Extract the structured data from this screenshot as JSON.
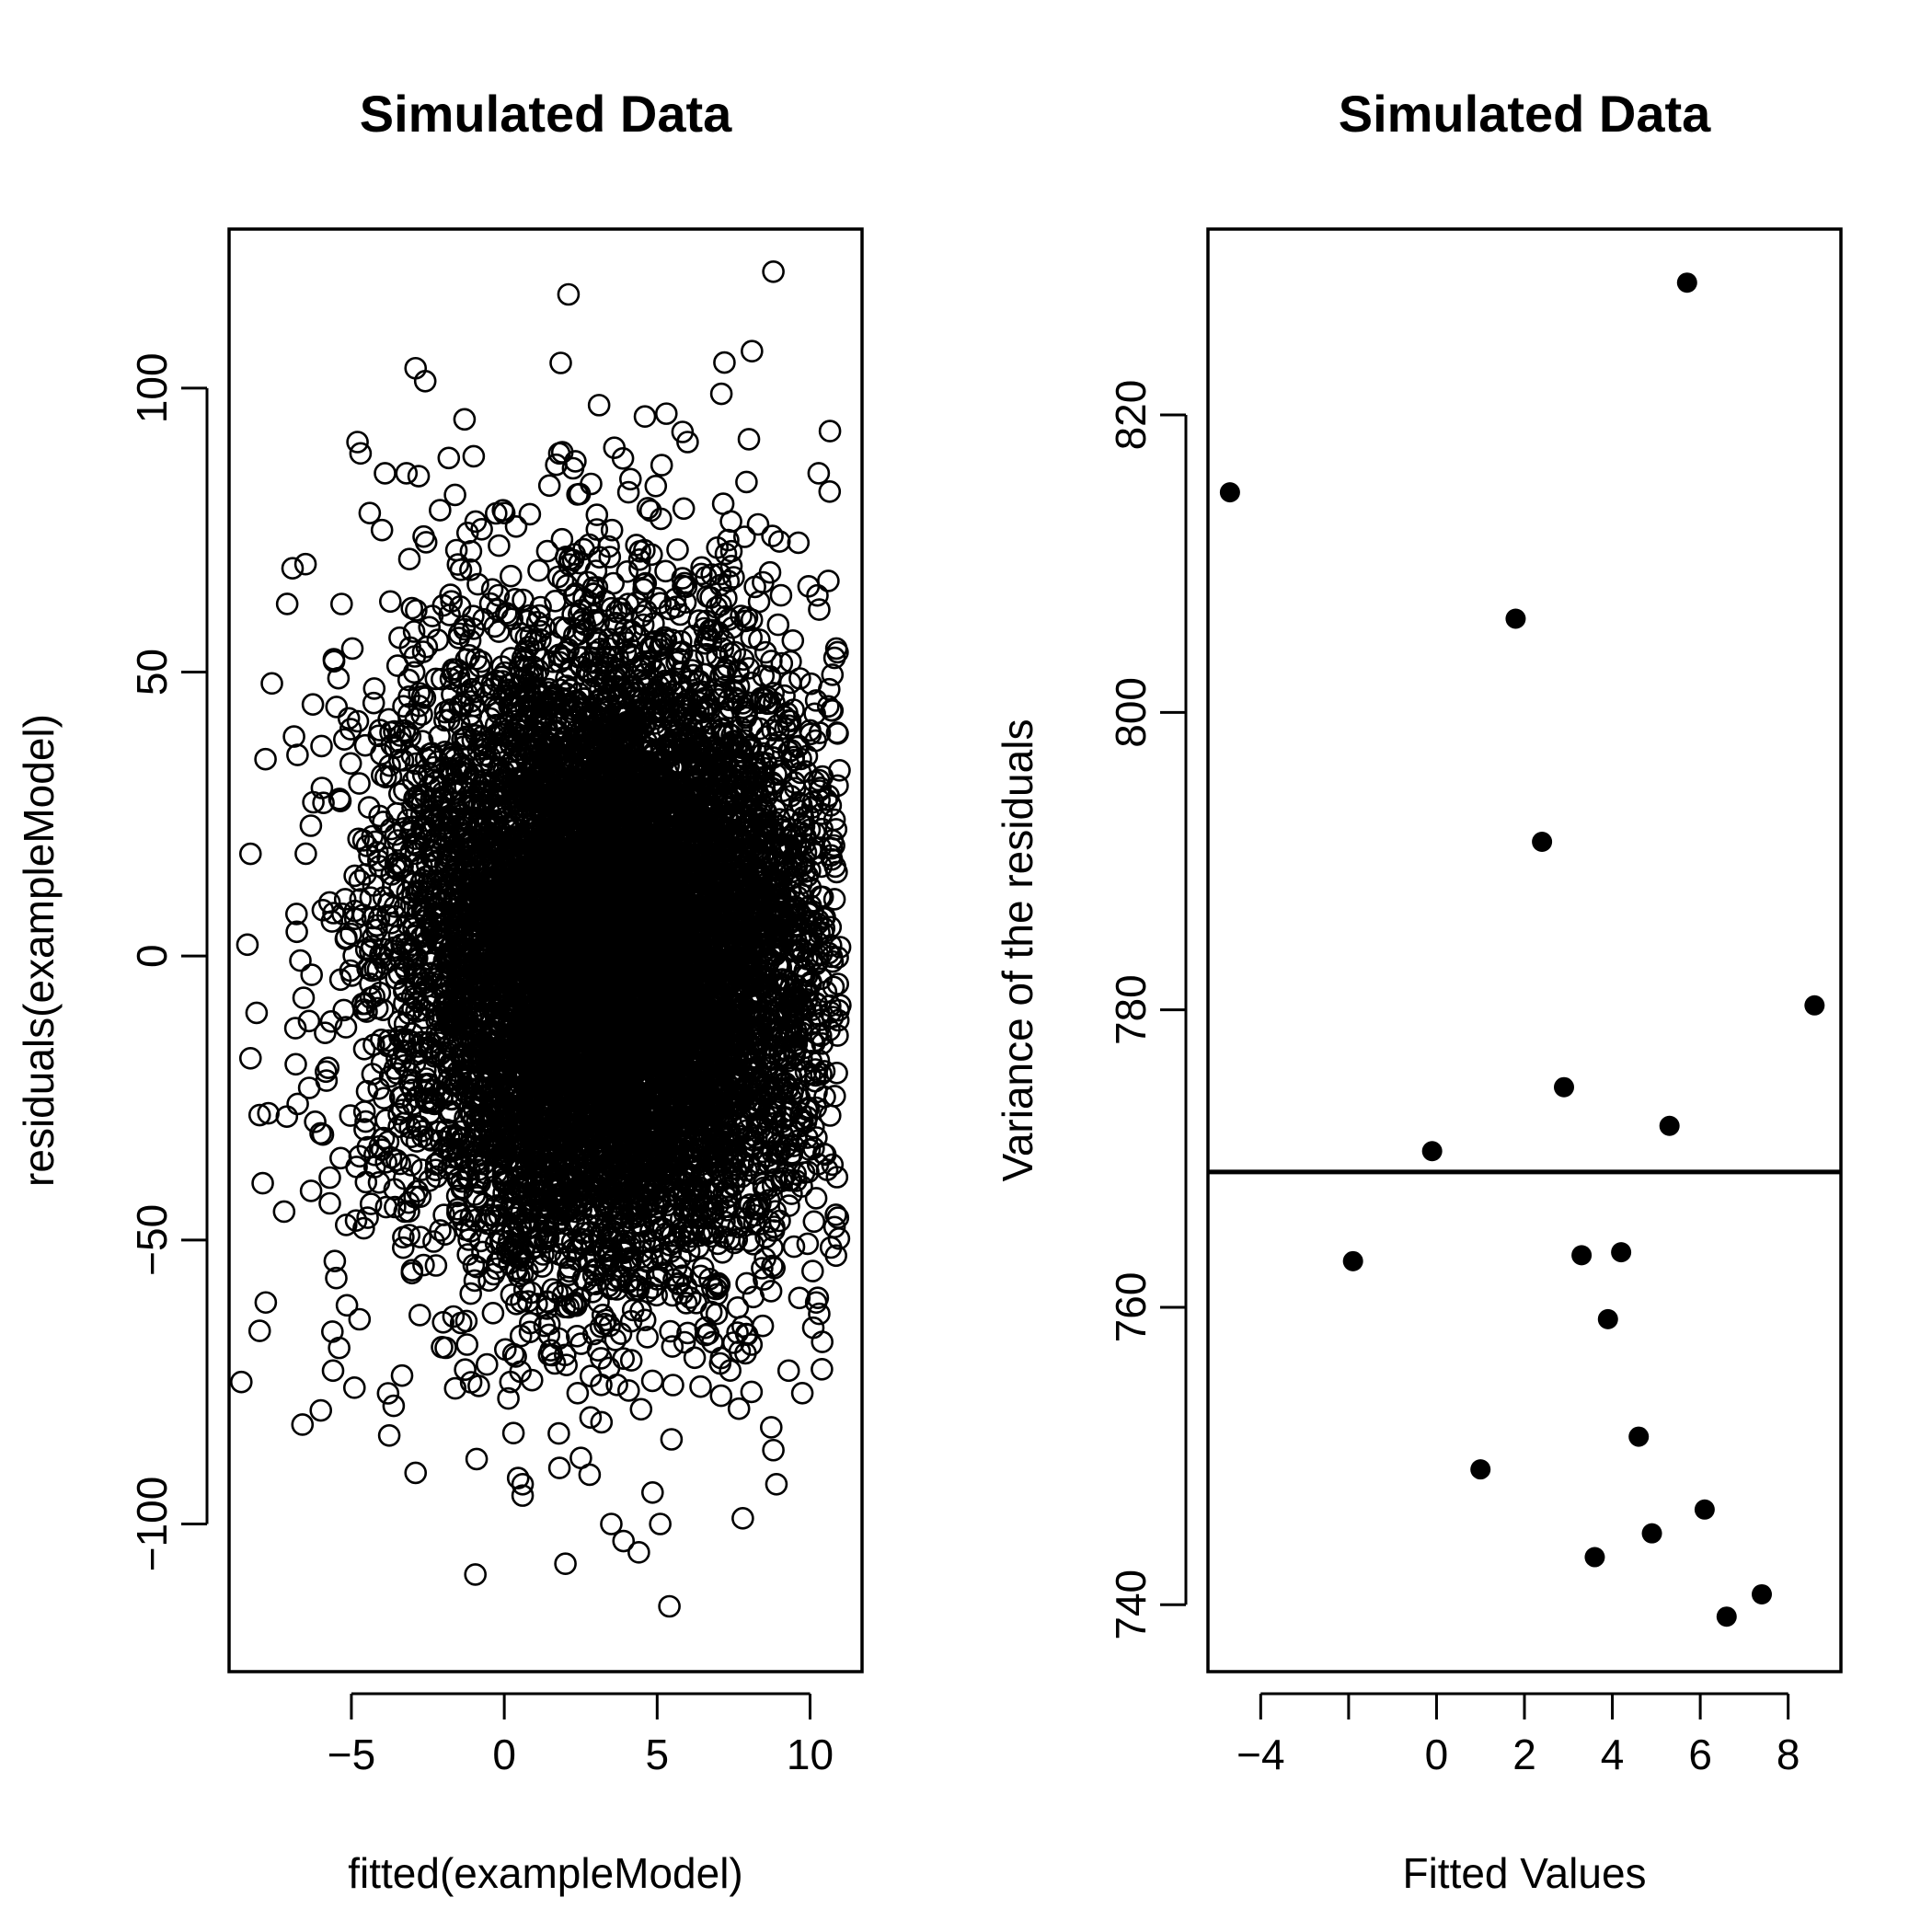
{
  "chart_data": [
    {
      "type": "scatter",
      "title": "Simulated Data",
      "xlabel": "fitted(exampleModel)",
      "ylabel": "residuals(exampleModel)",
      "xlim": [
        -9.0,
        11.7
      ],
      "ylim": [
        -126,
        128
      ],
      "x_ticks": [
        -5,
        0,
        5,
        10
      ],
      "y_ticks": [
        -100,
        -50,
        0,
        50,
        100
      ],
      "x_tick_labels": [
        "−5",
        "0",
        "5",
        "10"
      ],
      "y_tick_labels": [
        "−100",
        "−50",
        "0",
        "50",
        "100"
      ],
      "marker": "open-circle",
      "grid": false,
      "points_description_note": "",
      "cloud": {
        "x_center": 3.5,
        "x_sd": 3.5,
        "x_range": [
          -8.3,
          11.0
        ],
        "residual_sd": 27.8,
        "residual_mean": 0
      },
      "outliers": [
        {
          "x": 8.8,
          "y": 120.5
        },
        {
          "x": 2.1,
          "y": 116.5
        },
        {
          "x": -2.9,
          "y": 103.5
        },
        {
          "x": 7.2,
          "y": 104.5
        },
        {
          "x": 8.1,
          "y": 106.5
        },
        {
          "x": 7.1,
          "y": 99.0
        },
        {
          "x": -1.3,
          "y": 94.5
        },
        {
          "x": 3.1,
          "y": 97.0
        },
        {
          "x": -4.8,
          "y": 90.5
        },
        {
          "x": -4.7,
          "y": 88.5
        },
        {
          "x": 8.0,
          "y": 91.0
        },
        {
          "x": -3.2,
          "y": 85.0
        },
        {
          "x": -2.8,
          "y": 84.5
        },
        {
          "x": -1.0,
          "y": 88.0
        },
        {
          "x": 1.8,
          "y": 88.5
        },
        {
          "x": -3.9,
          "y": 85.0
        },
        {
          "x": -4.4,
          "y": 78.0
        },
        {
          "x": -2.1,
          "y": 78.5
        },
        {
          "x": -4.0,
          "y": 75.0
        },
        {
          "x": -1.2,
          "y": 74.5
        },
        {
          "x": 10.3,
          "y": 61.0
        },
        {
          "x": 10.9,
          "y": 53.5
        },
        {
          "x": -6.5,
          "y": 69.0
        },
        {
          "x": -7.1,
          "y": 62.0
        },
        {
          "x": -7.6,
          "y": 48.0
        },
        {
          "x": -8.3,
          "y": 18.0
        },
        {
          "x": -8.4,
          "y": 2.0
        },
        {
          "x": -8.1,
          "y": -10.0
        },
        {
          "x": -8.3,
          "y": -18.0
        },
        {
          "x": -8.0,
          "y": -28.0
        },
        {
          "x": -7.9,
          "y": -40.0
        },
        {
          "x": -7.2,
          "y": -45.0
        },
        {
          "x": -7.8,
          "y": -61.0
        },
        {
          "x": -8.0,
          "y": -66.0
        },
        {
          "x": -8.6,
          "y": -75.0
        },
        {
          "x": -6.6,
          "y": -82.5
        },
        {
          "x": -6.0,
          "y": -80.0
        },
        {
          "x": -5.6,
          "y": -73.0
        },
        {
          "x": -5.4,
          "y": -69.0
        },
        {
          "x": -4.9,
          "y": -76.0
        },
        {
          "x": -3.8,
          "y": -77.0
        },
        {
          "x": -2.9,
          "y": -91.0
        },
        {
          "x": 0.2,
          "y": -75.0
        },
        {
          "x": 0.3,
          "y": -84.0
        },
        {
          "x": 0.6,
          "y": -95.0
        },
        {
          "x": 0.6,
          "y": -93.0
        },
        {
          "x": 2.0,
          "y": -107.0
        },
        {
          "x": 3.5,
          "y": -100.0
        },
        {
          "x": 3.9,
          "y": -103.0
        },
        {
          "x": 4.4,
          "y": -105.0
        },
        {
          "x": 5.1,
          "y": -100.0
        },
        {
          "x": 5.4,
          "y": -114.5
        },
        {
          "x": 7.8,
          "y": -99.0
        },
        {
          "x": 8.9,
          "y": -93.0
        },
        {
          "x": 8.8,
          "y": -87.0
        },
        {
          "x": 9.3,
          "y": -73.0
        },
        {
          "x": 10.2,
          "y": -61.0
        },
        {
          "x": 10.3,
          "y": -63.0
        },
        {
          "x": 10.9,
          "y": -14.0
        },
        {
          "x": 10.8,
          "y": 10.0
        },
        {
          "x": 10.8,
          "y": 24.0
        },
        {
          "x": 10.9,
          "y": 30.0
        },
        {
          "x": 10.8,
          "y": 52.5
        },
        {
          "x": 10.2,
          "y": 45.0
        },
        {
          "x": 9.0,
          "y": 73.0
        },
        {
          "x": 8.3,
          "y": 76.0
        },
        {
          "x": 5.3,
          "y": 95.5
        },
        {
          "x": 4.6,
          "y": 95.0
        },
        {
          "x": 3.6,
          "y": 89.5
        },
        {
          "x": 1.7,
          "y": 86.5
        },
        {
          "x": 0.0,
          "y": 78.0
        }
      ]
    },
    {
      "type": "scatter",
      "title": "Simulated Data",
      "xlabel": "Fitted Values",
      "ylabel": "Variance of the residuals",
      "xlim": [
        -5.2,
        9.2
      ],
      "ylim": [
        735.5,
        832.5
      ],
      "x_ticks": [
        -4,
        -2,
        0,
        2,
        4,
        6,
        8
      ],
      "y_ticks": [
        740,
        760,
        780,
        800,
        820
      ],
      "x_tick_labels": [
        "−4",
        "",
        "0",
        "2",
        "4",
        "6",
        "8"
      ],
      "y_tick_labels": [
        "740",
        "760",
        "780",
        "800",
        "820"
      ],
      "marker": "filled-circle",
      "grid": false,
      "hline": 769.1,
      "points": [
        {
          "x": -4.7,
          "y": 814.8
        },
        {
          "x": -1.9,
          "y": 763.1
        },
        {
          "x": -0.1,
          "y": 770.5
        },
        {
          "x": 1.0,
          "y": 749.1
        },
        {
          "x": 1.8,
          "y": 806.3
        },
        {
          "x": 2.4,
          "y": 791.3
        },
        {
          "x": 2.9,
          "y": 774.8
        },
        {
          "x": 3.3,
          "y": 763.5
        },
        {
          "x": 3.6,
          "y": 743.2
        },
        {
          "x": 3.9,
          "y": 759.2
        },
        {
          "x": 4.2,
          "y": 763.7
        },
        {
          "x": 4.6,
          "y": 751.3
        },
        {
          "x": 4.9,
          "y": 744.8
        },
        {
          "x": 5.3,
          "y": 772.2
        },
        {
          "x": 5.7,
          "y": 828.9
        },
        {
          "x": 6.1,
          "y": 746.4
        },
        {
          "x": 6.6,
          "y": 739.2
        },
        {
          "x": 7.4,
          "y": 740.7
        },
        {
          "x": 8.6,
          "y": 780.3
        }
      ]
    }
  ]
}
